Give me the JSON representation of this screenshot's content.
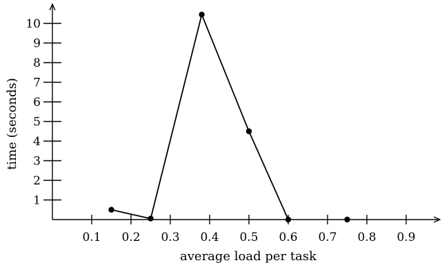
{
  "chart_data": {
    "type": "line",
    "title": "",
    "xlabel": "average load per task",
    "ylabel": "time (seconds)",
    "x_ticks": [
      "0.1",
      "0.2",
      "0.3",
      "0.4",
      "0.5",
      "0.6",
      "0.7",
      "0.8",
      "0.9"
    ],
    "y_ticks": [
      "1",
      "2",
      "3",
      "4",
      "5",
      "6",
      "7",
      "8",
      "9",
      "10"
    ],
    "xlim": [
      0,
      1.0
    ],
    "ylim": [
      0,
      10.7
    ],
    "grid": false,
    "series": [
      {
        "x": [
          0.15,
          0.25,
          0.38,
          0.5,
          0.6
        ],
        "y": [
          0.5,
          0.05,
          10.45,
          4.5,
          0.0
        ]
      }
    ],
    "isolated_points": [
      {
        "x": 0.75,
        "y": 0.0
      }
    ]
  }
}
